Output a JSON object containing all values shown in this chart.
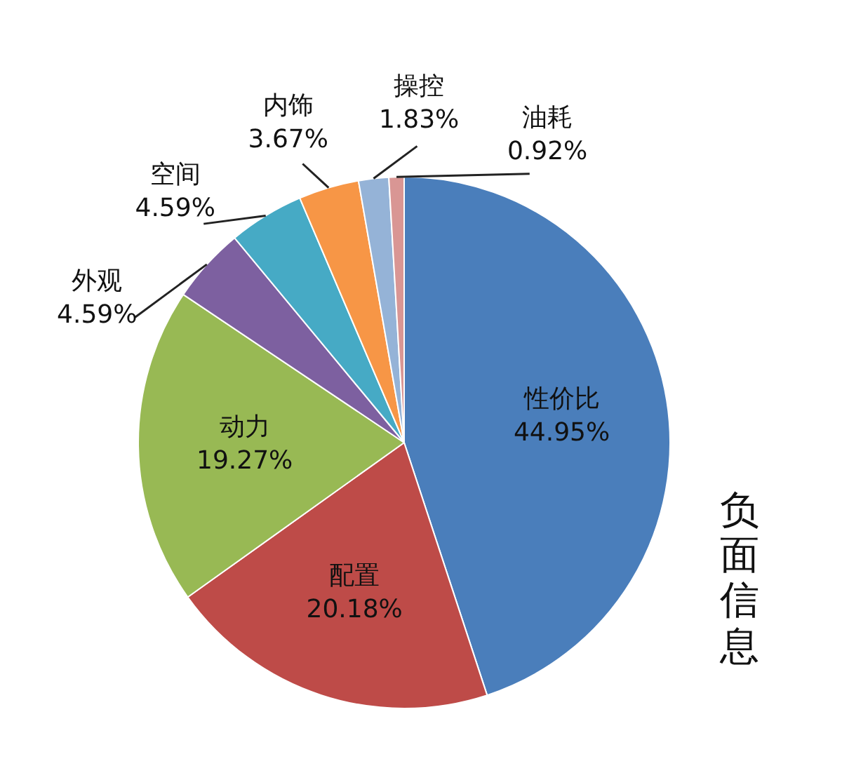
{
  "chart_data": {
    "type": "pie",
    "title": "负面信息",
    "categories": [
      "性价比",
      "配置",
      "动力",
      "外观",
      "空间",
      "内饰",
      "操控",
      "油耗"
    ],
    "values": [
      44.95,
      20.18,
      19.27,
      4.59,
      4.59,
      3.67,
      1.83,
      0.92
    ],
    "value_labels": [
      "44.95%",
      "20.18%",
      "19.27%",
      "4.59%",
      "4.59%",
      "3.67%",
      "1.83%",
      "0.92%"
    ],
    "colors": [
      "#4a7ebb",
      "#be4b48",
      "#98b954",
      "#7d60a0",
      "#46aac5",
      "#f79646",
      "#95b3d7",
      "#d99694"
    ],
    "legend": false
  }
}
